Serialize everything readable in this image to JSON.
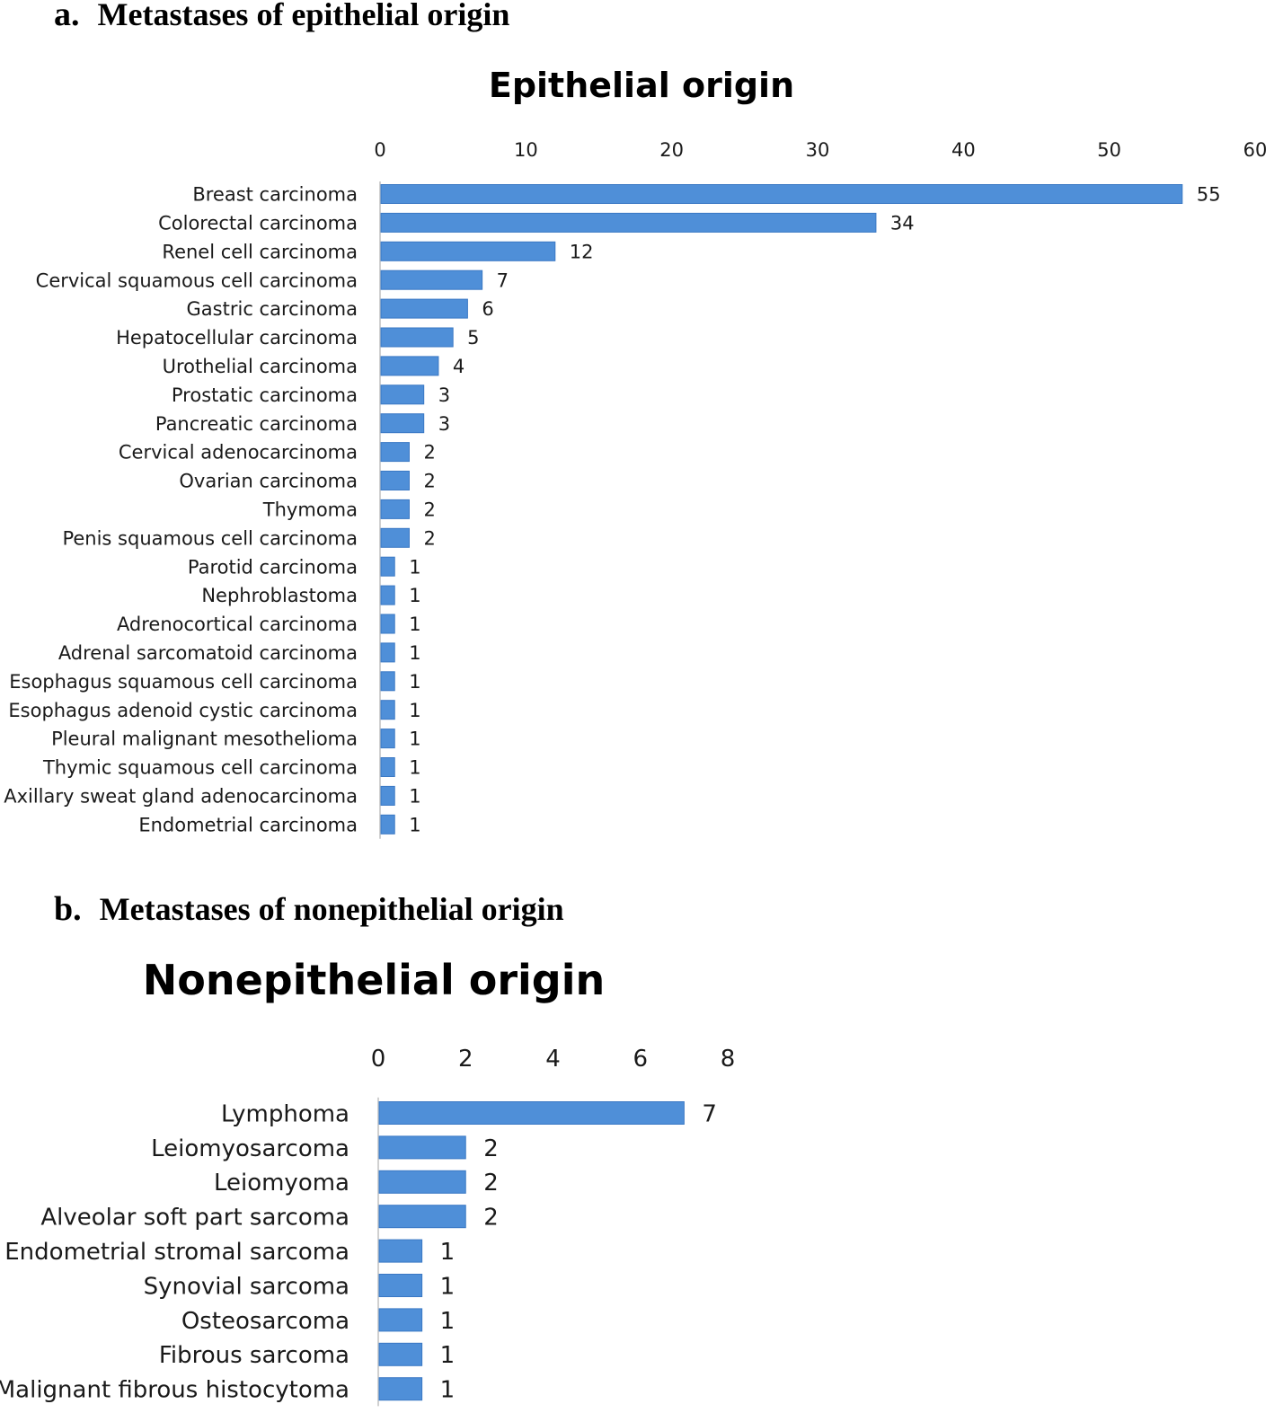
{
  "panels": {
    "a": {
      "letter": "a.",
      "caption": "Metastases of epithelial origin"
    },
    "b": {
      "letter": "b.",
      "caption": "Metastases of nonepithelial origin"
    }
  },
  "colors": {
    "bar": "#4f8fd8",
    "bar_dark": "#3a78c4",
    "axis": "#d0d0d0",
    "text": "#1a1a1a"
  },
  "chart_data": [
    {
      "type": "bar",
      "orientation": "horizontal",
      "title": "Epithelial origin",
      "xlabel": "",
      "ylabel": "",
      "xlim": [
        0,
        60
      ],
      "ticks": [
        0,
        10,
        20,
        30,
        40,
        50,
        60
      ],
      "tick_position": "top",
      "grid": false,
      "data_labels": true,
      "categories": [
        "Breast carcinoma",
        "Colorectal carcinoma",
        "Renel cell carcinoma",
        "Cervical squamous cell carcinoma",
        "Gastric carcinoma",
        "Hepatocellular carcinoma",
        "Urothelial carcinoma",
        "Prostatic carcinoma",
        "Pancreatic carcinoma",
        "Cervical adenocarcinoma",
        "Ovarian carcinoma",
        "Thymoma",
        "Penis squamous cell carcinoma",
        "Parotid carcinoma",
        "Nephroblastoma",
        "Adrenocortical carcinoma",
        "Adrenal sarcomatoid carcinoma",
        "Esophagus squamous cell carcinoma",
        "Esophagus adenoid cystic carcinoma",
        "Pleural malignant mesothelioma",
        "Thymic squamous cell carcinoma",
        "Axillary sweat gland adenocarcinoma",
        "Endometrial carcinoma"
      ],
      "values": [
        55,
        34,
        12,
        7,
        6,
        5,
        4,
        3,
        3,
        2,
        2,
        2,
        2,
        1,
        1,
        1,
        1,
        1,
        1,
        1,
        1,
        1,
        1
      ]
    },
    {
      "type": "bar",
      "orientation": "horizontal",
      "title": "Nonepithelial origin",
      "xlabel": "",
      "ylabel": "",
      "xlim": [
        0,
        8
      ],
      "ticks": [
        0,
        2,
        4,
        6,
        8
      ],
      "tick_position": "top",
      "grid": false,
      "data_labels": true,
      "categories": [
        "Lymphoma",
        "Leiomyosarcoma",
        "Leiomyoma",
        "Alveolar soft part sarcoma",
        "Endometrial stromal sarcoma",
        "Synovial sarcoma",
        "Osteosarcoma",
        "Fibrous sarcoma",
        "Malignant fibrous histocytoma"
      ],
      "values": [
        7,
        2,
        2,
        2,
        1,
        1,
        1,
        1,
        1
      ]
    }
  ]
}
